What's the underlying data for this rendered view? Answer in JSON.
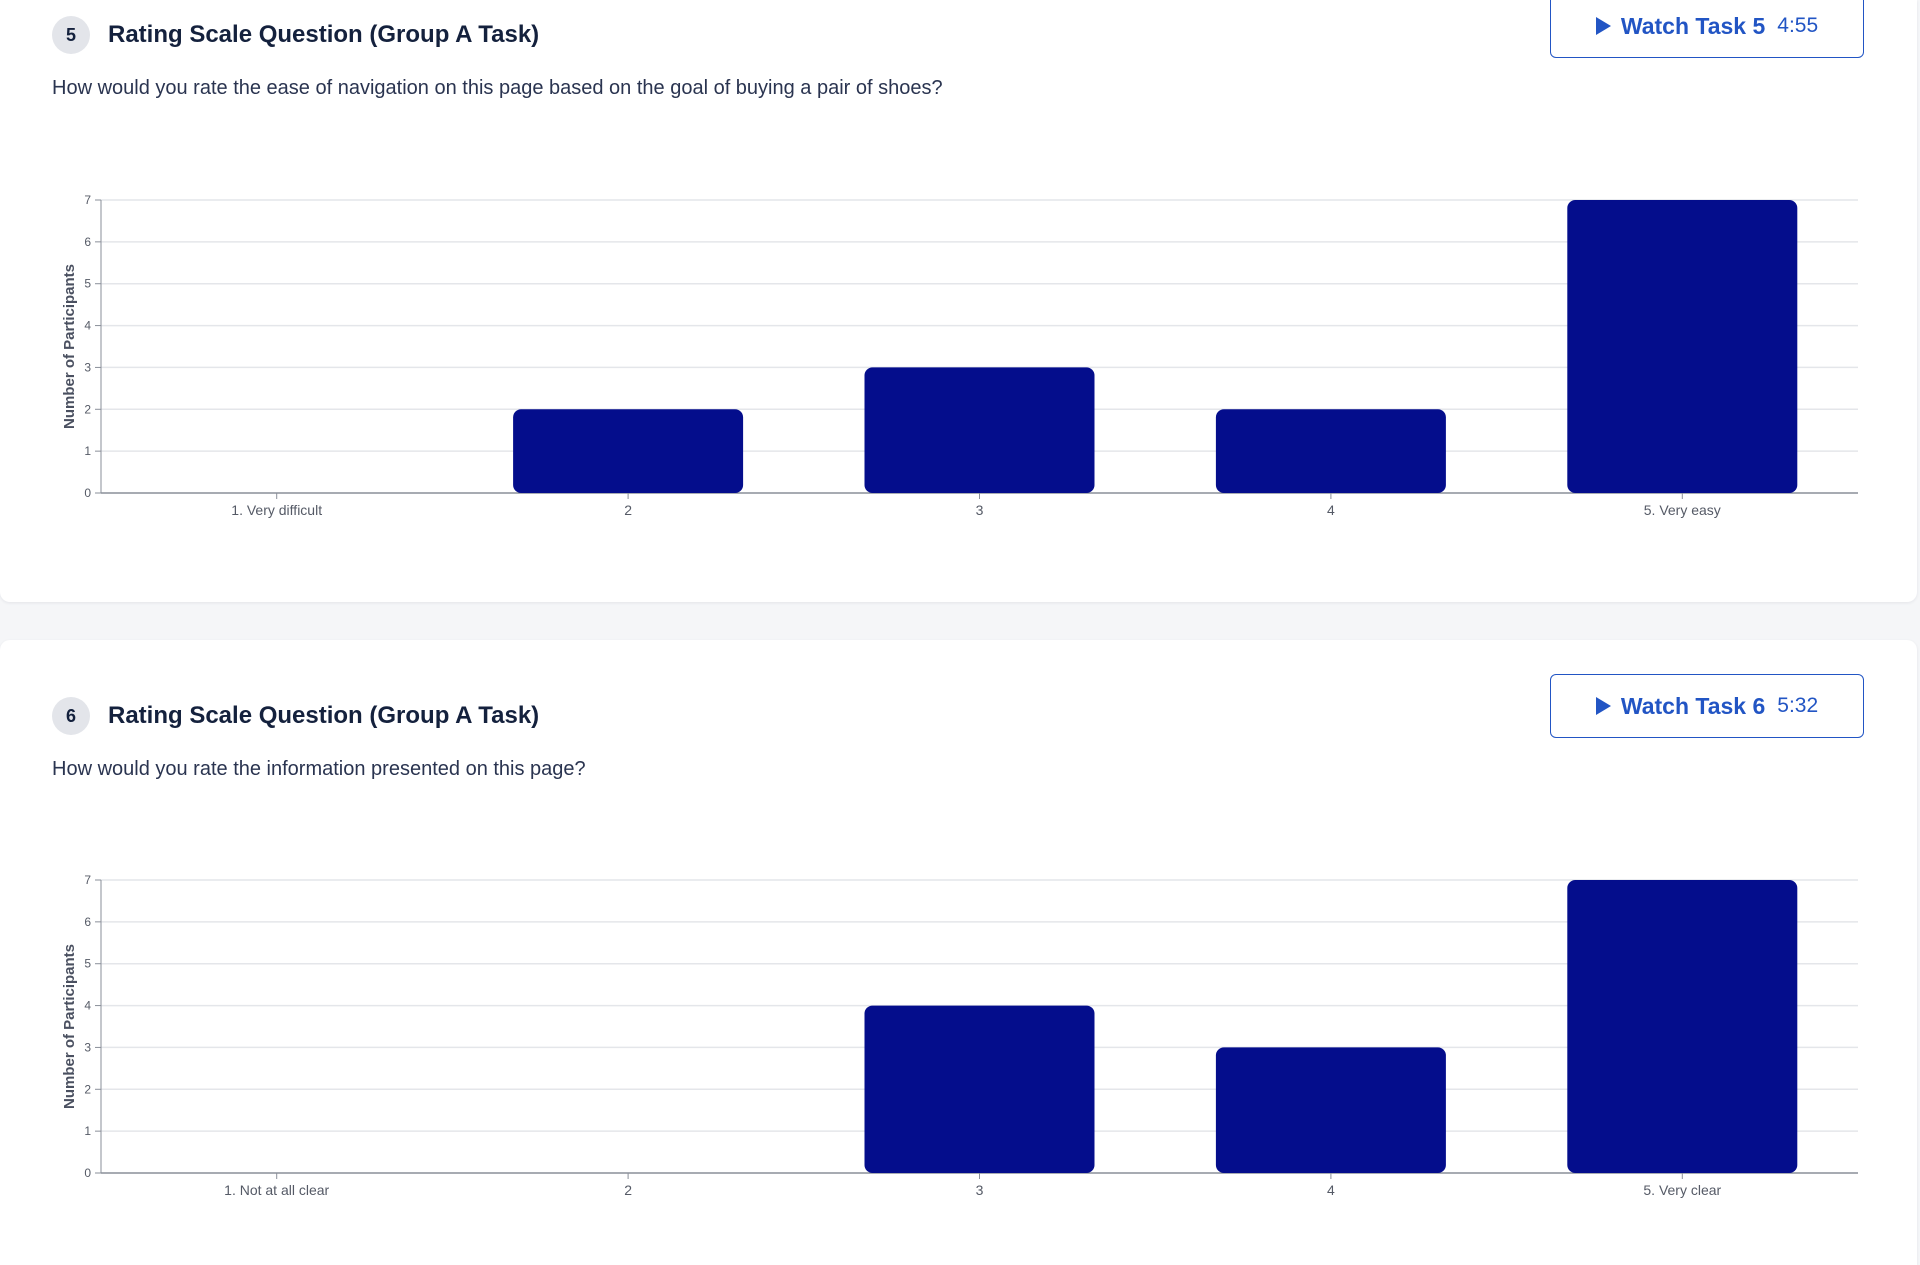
{
  "questions": [
    {
      "number": "5",
      "title": "Rating Scale Question (Group A Task)",
      "text": "How would you rate the ease of navigation on this page based on the goal of buying a pair of shoes?",
      "watch": {
        "label": "Watch Task 5",
        "duration": "4:55",
        "icon": "play-icon"
      }
    },
    {
      "number": "6",
      "title": "Rating Scale Question (Group A Task)",
      "text": "How would you rate the information presented on this page?",
      "watch": {
        "label": "Watch Task 6",
        "duration": "5:32",
        "icon": "play-icon"
      }
    }
  ],
  "colors": {
    "bar": "#040d8c",
    "accent": "#2255c4",
    "grid": "#e4e6ea",
    "axis": "#8a8f99"
  },
  "chart_data": [
    {
      "type": "bar",
      "categories": [
        "1. Very difficult",
        "2",
        "3",
        "4",
        "5. Very easy"
      ],
      "values": [
        0,
        2,
        3,
        2,
        7
      ],
      "ylabel": "Number of Participants",
      "ylim": [
        0,
        7
      ],
      "yticks": [
        0,
        1,
        2,
        3,
        4,
        5,
        6,
        7
      ],
      "grid": true
    },
    {
      "type": "bar",
      "categories": [
        "1. Not at all clear",
        "2",
        "3",
        "4",
        "5. Very clear"
      ],
      "values": [
        0,
        0,
        4,
        3,
        7
      ],
      "ylabel": "Number of Participants",
      "ylim": [
        0,
        7
      ],
      "yticks": [
        0,
        1,
        2,
        3,
        4,
        5,
        6,
        7
      ],
      "grid": true
    }
  ]
}
